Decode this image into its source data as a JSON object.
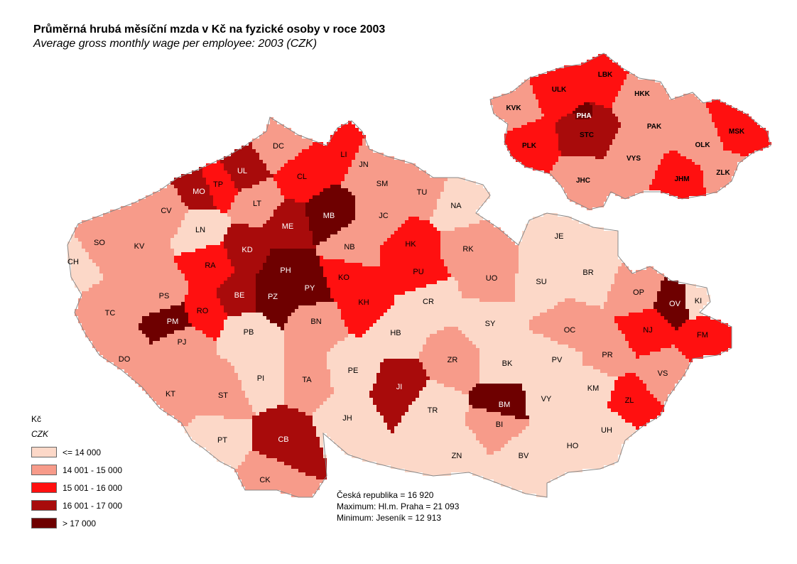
{
  "title": "Průměrná hrubá měsíční mzda v Kč na fyzické osoby v roce 2003",
  "subtitle": "Average gross monthly wage per employee: 2003 (CZK)",
  "legend": {
    "unit_cz": "Kč",
    "unit_en": "CZK",
    "classes": [
      {
        "label": "<= 14 000",
        "color": "#fcd8c8"
      },
      {
        "label": "14 001 - 15 000",
        "color": "#f79b8a"
      },
      {
        "label": "15 001 - 16 000",
        "color": "#ff1010"
      },
      {
        "label": "16 001 - 17 000",
        "color": "#a80b0b"
      },
      {
        "label": "> 17 000",
        "color": "#6e0000"
      }
    ]
  },
  "stats": {
    "line1": "Česká republika =  16 920",
    "line2": "Maximum: Hl.m. Praha = 21 093",
    "line3": "Minimum: Jeseník = 12 913"
  },
  "districts": [
    {
      "code": "DC",
      "cls": 1
    },
    {
      "code": "LI",
      "cls": 2
    },
    {
      "code": "JN",
      "cls": 1
    },
    {
      "code": "UL",
      "cls": 3
    },
    {
      "code": "TP",
      "cls": 2
    },
    {
      "code": "MO",
      "cls": 3
    },
    {
      "code": "CL",
      "cls": 2
    },
    {
      "code": "SM",
      "cls": 1
    },
    {
      "code": "TU",
      "cls": 1
    },
    {
      "code": "NA",
      "cls": 0
    },
    {
      "code": "LT",
      "cls": 1
    },
    {
      "code": "MB",
      "cls": 4
    },
    {
      "code": "CV",
      "cls": 1
    },
    {
      "code": "LN",
      "cls": 0
    },
    {
      "code": "ME",
      "cls": 3
    },
    {
      "code": "JC",
      "cls": 1
    },
    {
      "code": "SO",
      "cls": 1
    },
    {
      "code": "KV",
      "cls": 1
    },
    {
      "code": "CH",
      "cls": 0
    },
    {
      "code": "KD",
      "cls": 3
    },
    {
      "code": "NB",
      "cls": 1
    },
    {
      "code": "HK",
      "cls": 2
    },
    {
      "code": "RK",
      "cls": 1
    },
    {
      "code": "JE",
      "cls": 0
    },
    {
      "code": "RA",
      "cls": 2
    },
    {
      "code": "PH",
      "cls": 4
    },
    {
      "code": "KO",
      "cls": 2
    },
    {
      "code": "PU",
      "cls": 2
    },
    {
      "code": "UO",
      "cls": 1
    },
    {
      "code": "BR",
      "cls": 0
    },
    {
      "code": "PS",
      "cls": 1
    },
    {
      "code": "BE",
      "cls": 3
    },
    {
      "code": "PZ",
      "cls": 4
    },
    {
      "code": "PY",
      "cls": 4
    },
    {
      "code": "SU",
      "cls": 0
    },
    {
      "code": "OP",
      "cls": 1
    },
    {
      "code": "TC",
      "cls": 1
    },
    {
      "code": "RO",
      "cls": 2
    },
    {
      "code": "KH",
      "cls": 2
    },
    {
      "code": "CR",
      "cls": 0
    },
    {
      "code": "OV",
      "cls": 4
    },
    {
      "code": "KI",
      "cls": 0
    },
    {
      "code": "PM",
      "cls": 4
    },
    {
      "code": "BN",
      "cls": 1
    },
    {
      "code": "SY",
      "cls": 0
    },
    {
      "code": "NJ",
      "cls": 2
    },
    {
      "code": "PB",
      "cls": 0
    },
    {
      "code": "HB",
      "cls": 0
    },
    {
      "code": "OC",
      "cls": 1
    },
    {
      "code": "FM",
      "cls": 2
    },
    {
      "code": "PJ",
      "cls": 1
    },
    {
      "code": "DO",
      "cls": 1
    },
    {
      "code": "ZR",
      "cls": 1
    },
    {
      "code": "PR",
      "cls": 1
    },
    {
      "code": "PV",
      "cls": 0
    },
    {
      "code": "BK",
      "cls": 0
    },
    {
      "code": "PE",
      "cls": 0
    },
    {
      "code": "VS",
      "cls": 1
    },
    {
      "code": "PI",
      "cls": 0
    },
    {
      "code": "TA",
      "cls": 1
    },
    {
      "code": "JI",
      "cls": 3
    },
    {
      "code": "KM",
      "cls": 0
    },
    {
      "code": "KT",
      "cls": 1
    },
    {
      "code": "ST",
      "cls": 1
    },
    {
      "code": "BM",
      "cls": 4
    },
    {
      "code": "VY",
      "cls": 0
    },
    {
      "code": "ZL",
      "cls": 2
    },
    {
      "code": "TR",
      "cls": 0
    },
    {
      "code": "JH",
      "cls": 0
    },
    {
      "code": "BI",
      "cls": 1
    },
    {
      "code": "UH",
      "cls": 0
    },
    {
      "code": "PT",
      "cls": 0
    },
    {
      "code": "CB",
      "cls": 3
    },
    {
      "code": "HO",
      "cls": 0
    },
    {
      "code": "ZN",
      "cls": 0
    },
    {
      "code": "BV",
      "cls": 0
    },
    {
      "code": "CK",
      "cls": 1
    }
  ],
  "regions": [
    {
      "code": "LBK",
      "cls": 2
    },
    {
      "code": "ULK",
      "cls": 2
    },
    {
      "code": "HKK",
      "cls": 1
    },
    {
      "code": "KVK",
      "cls": 1
    },
    {
      "code": "PHA",
      "cls": 4
    },
    {
      "code": "STC",
      "cls": 3
    },
    {
      "code": "PAK",
      "cls": 1
    },
    {
      "code": "MSK",
      "cls": 2
    },
    {
      "code": "PLK",
      "cls": 2
    },
    {
      "code": "OLK",
      "cls": 1
    },
    {
      "code": "VYS",
      "cls": 1
    },
    {
      "code": "ZLK",
      "cls": 1
    },
    {
      "code": "JHM",
      "cls": 2
    },
    {
      "code": "JHC",
      "cls": 1
    }
  ]
}
